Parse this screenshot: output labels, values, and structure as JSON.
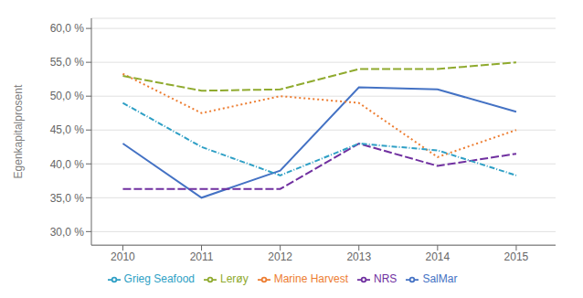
{
  "chart_data": {
    "type": "line",
    "x": [
      2010,
      2011,
      2012,
      2013,
      2014,
      2015
    ],
    "series": [
      {
        "name": "SalMar",
        "color": "#4472C4",
        "values": [
          0.43,
          0.35,
          0.39,
          0.513,
          0.51,
          0.477
        ],
        "line_style": "solid"
      },
      {
        "name": "Marine Harvest",
        "color": "#ED7D31",
        "values": [
          0.533,
          0.475,
          0.5,
          0.49,
          0.41,
          0.45
        ],
        "line_style": "dotted"
      },
      {
        "name": "Lerøy",
        "color": "#8faa2e",
        "values": [
          0.53,
          0.508,
          0.51,
          0.54,
          0.54,
          0.55
        ],
        "line_style": "dashed"
      },
      {
        "name": "NRS",
        "color": "#7030A0",
        "values": [
          0.363,
          0.363,
          0.363,
          0.43,
          0.397,
          0.415
        ],
        "line_style": "dashed"
      },
      {
        "name": "Grieg Seafood",
        "color": "#2E9FC5",
        "values": [
          0.49,
          0.425,
          0.383,
          0.43,
          0.42,
          0.383
        ],
        "line_style": "dashdot"
      }
    ],
    "ylabel": "Egenkapitalprosent",
    "xlim": [
      2009.6,
      2015.5
    ],
    "xticks": [
      2010,
      2011,
      2012,
      2013,
      2014,
      2015
    ],
    "ylim": [
      0.28,
      0.615
    ],
    "yticks": [
      {
        "value": 0.3,
        "label": "30,0 %"
      },
      {
        "value": 0.35,
        "label": "35,0 %"
      },
      {
        "value": 0.4,
        "label": "40,0 %"
      },
      {
        "value": 0.45,
        "label": "45,0 %"
      },
      {
        "value": 0.5,
        "label": "50,0 %"
      },
      {
        "value": 0.55,
        "label": "55,0 %"
      },
      {
        "value": 0.6,
        "label": "60,0 %"
      }
    ],
    "grid": true,
    "legend": "bottom"
  }
}
